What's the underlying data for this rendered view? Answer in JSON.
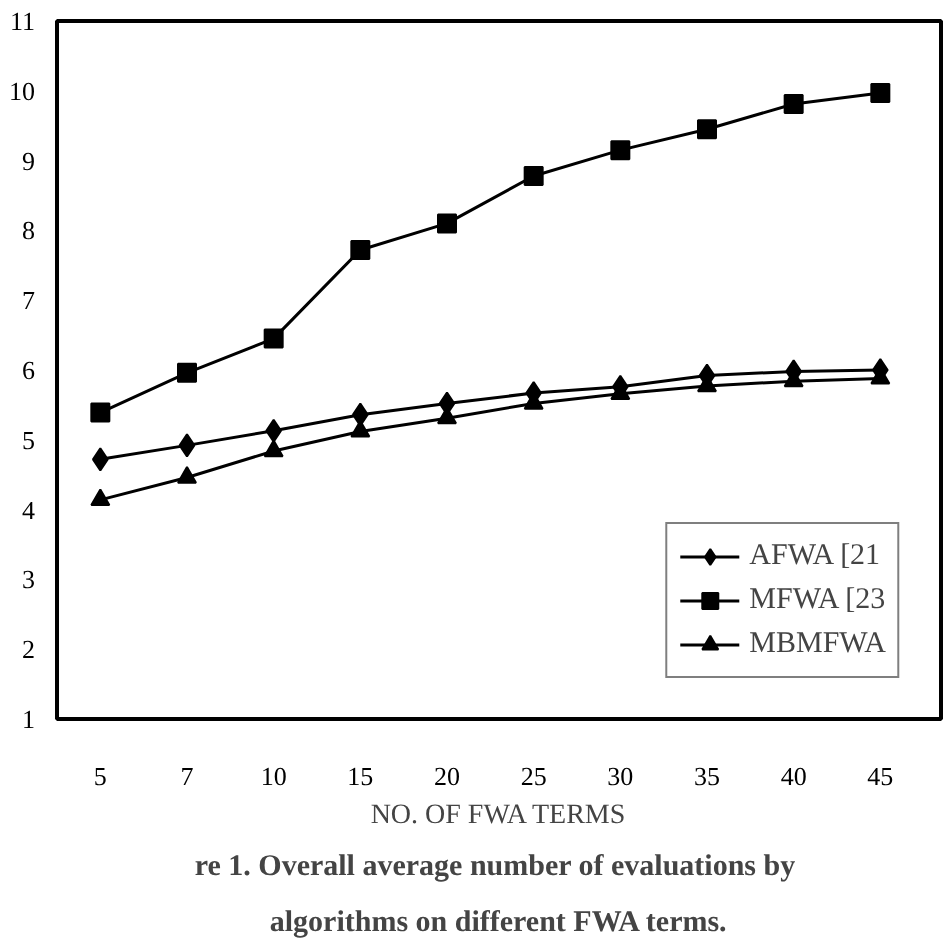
{
  "chart_data": {
    "type": "line",
    "xlabel": "NO. OF FWA TERMS",
    "annotations": [
      "re 1.  Overall average number of evaluations by",
      "algorithms on different FWA terms."
    ],
    "categories": [
      "5",
      "7",
      "10",
      "15",
      "20",
      "25",
      "30",
      "35",
      "40",
      "45"
    ],
    "ylim": [
      1,
      11
    ],
    "yticks": [
      1,
      2,
      3,
      4,
      5,
      6,
      7,
      8,
      9,
      10,
      11
    ],
    "grid": false,
    "legend": "bottom right",
    "line_style": "solid",
    "series": [
      {
        "name": "AFWA [21",
        "color": "#000000",
        "marker": "diamond",
        "values": [
          4.72,
          4.92,
          5.13,
          5.36,
          5.52,
          5.67,
          5.76,
          5.92,
          5.98,
          6.0
        ]
      },
      {
        "name": "MFWA [23",
        "color": "#000000",
        "marker": "square",
        "values": [
          5.39,
          5.96,
          6.45,
          7.72,
          8.1,
          8.78,
          9.15,
          9.45,
          9.81,
          9.97
        ]
      },
      {
        "name": "MBMFWA",
        "color": "#000000",
        "marker": "triangle",
        "values": [
          4.14,
          4.46,
          4.84,
          5.12,
          5.31,
          5.52,
          5.66,
          5.77,
          5.84,
          5.88
        ]
      }
    ]
  }
}
